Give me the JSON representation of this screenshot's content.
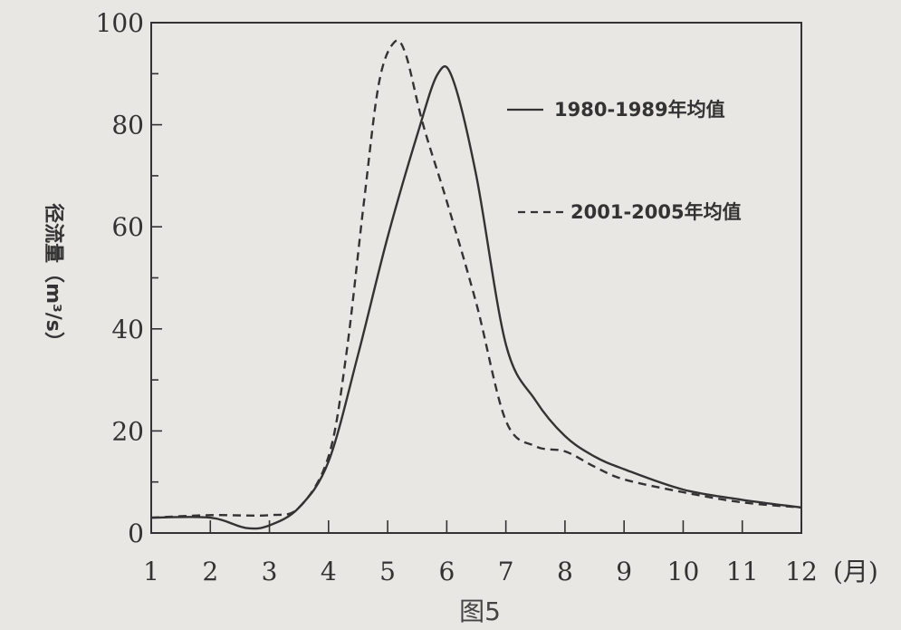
{
  "chart_data": {
    "type": "line",
    "caption": "图5",
    "ylabel": "径流量（m³/s）",
    "x_unit": "(月)",
    "x_ticks": [
      1,
      2,
      3,
      4,
      5,
      6,
      7,
      8,
      9,
      10,
      11,
      12
    ],
    "y_ticks": [
      0,
      20,
      40,
      60,
      80,
      100
    ],
    "xlim": [
      1,
      12
    ],
    "ylim": [
      0,
      100
    ],
    "grid": false,
    "legend_position": "right",
    "series": [
      {
        "name": "1980-1989年均值",
        "style": "solid",
        "x": [
          1,
          2,
          2.6,
          3,
          3.5,
          4,
          4.5,
          5,
          5.5,
          5.85,
          6.1,
          6.5,
          7,
          7.5,
          8,
          8.5,
          9,
          10,
          11,
          12
        ],
        "y": [
          3,
          3,
          1,
          1.5,
          5,
          14,
          35,
          58,
          78,
          90,
          89,
          70,
          37,
          26,
          19,
          15,
          12.5,
          8.5,
          6.5,
          5
        ]
      },
      {
        "name": "2001-2005年均值",
        "style": "dashed",
        "x": [
          1,
          2,
          3,
          3.5,
          4,
          4.3,
          4.6,
          4.85,
          5.1,
          5.3,
          5.6,
          6,
          6.5,
          7,
          7.5,
          8,
          8.5,
          9,
          10,
          11,
          12
        ],
        "y": [
          3,
          3.5,
          3.5,
          5,
          15,
          35,
          65,
          88,
          96,
          94,
          80,
          65,
          45,
          22,
          17,
          16,
          13,
          10.5,
          8,
          6,
          5
        ]
      }
    ]
  }
}
